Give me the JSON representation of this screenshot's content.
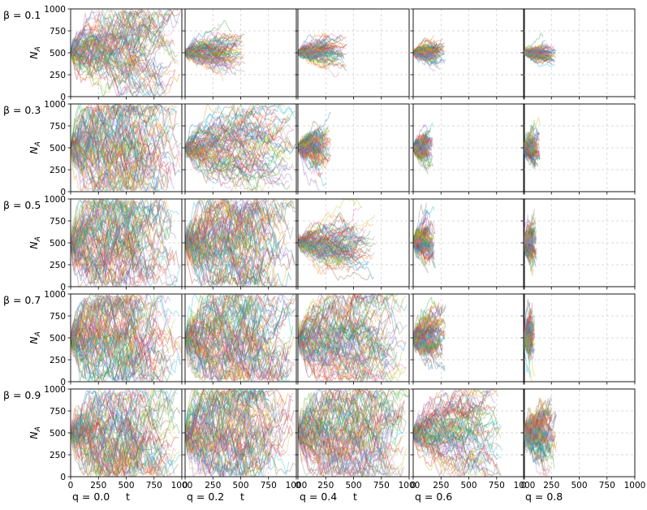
{
  "figure": {
    "description_type": "grid",
    "rows": 5,
    "cols": 5
  },
  "chart_data": {
    "type": "line",
    "title": "",
    "xlabel": "t",
    "ylabel": "N_A",
    "xlim": [
      0,
      1000
    ],
    "ylim": [
      0,
      1000
    ],
    "xticks": [
      0,
      250,
      500,
      750,
      1000
    ],
    "yticks": [
      0,
      250,
      500,
      750,
      1000
    ],
    "grid": true,
    "row_labels": [
      "β = 0.1",
      "β = 0.3",
      "β = 0.5",
      "β = 0.7",
      "β = 0.9"
    ],
    "col_labels": [
      "q = 0.0",
      "q = 0.2",
      "q = 0.4",
      "q = 0.6",
      "q = 0.8"
    ],
    "n_trajectories_per_panel": 80,
    "start_value": 500,
    "panels_t_max": [
      [
        1000,
        550,
        450,
        300,
        300
      ],
      [
        1000,
        1000,
        300,
        180,
        150
      ],
      [
        1000,
        1000,
        700,
        200,
        120
      ],
      [
        1000,
        1000,
        1000,
        300,
        100
      ],
      [
        1000,
        1000,
        1000,
        800,
        300
      ]
    ],
    "panels_spread": [
      [
        350,
        120,
        90,
        70,
        60
      ],
      [
        500,
        280,
        130,
        100,
        100
      ],
      [
        500,
        500,
        170,
        130,
        130
      ],
      [
        500,
        500,
        400,
        170,
        150
      ],
      [
        500,
        500,
        500,
        280,
        200
      ]
    ],
    "series_colors": [
      "#1f77b4",
      "#ff7f0e",
      "#2ca02c",
      "#d62728",
      "#9467bd",
      "#8c564b",
      "#e377c2",
      "#7f7f7f",
      "#bcbd22",
      "#17becf"
    ]
  }
}
